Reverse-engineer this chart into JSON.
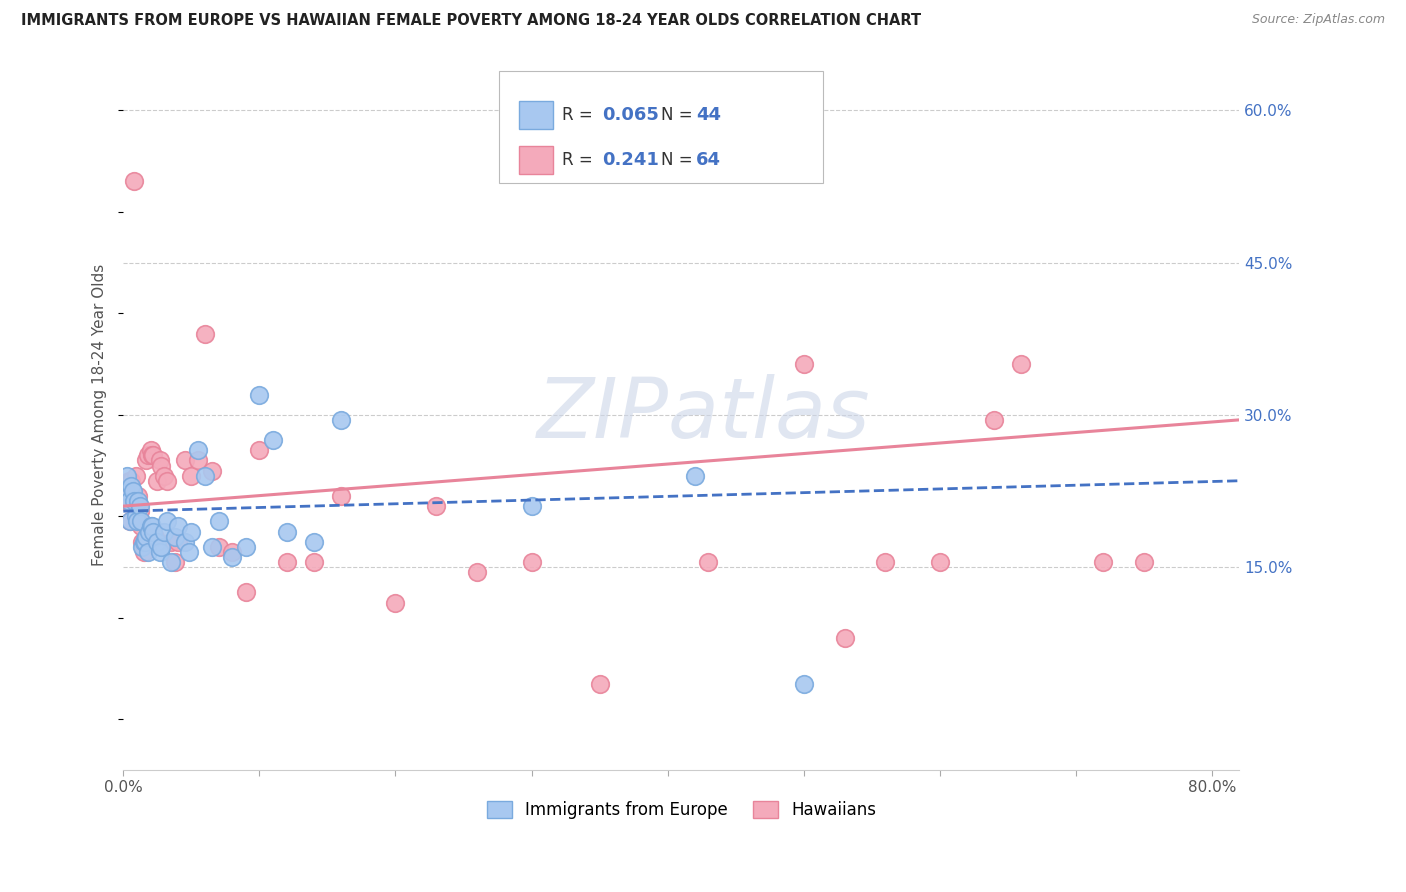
{
  "title": "IMMIGRANTS FROM EUROPE VS HAWAIIAN FEMALE POVERTY AMONG 18-24 YEAR OLDS CORRELATION CHART",
  "source": "Source: ZipAtlas.com",
  "ylabel": "Female Poverty Among 18-24 Year Olds",
  "xlim": [
    0.0,
    0.82
  ],
  "ylim": [
    -0.05,
    0.65
  ],
  "xticks": [
    0.0,
    0.1,
    0.2,
    0.3,
    0.4,
    0.5,
    0.6,
    0.7,
    0.8
  ],
  "xticklabels": [
    "0.0%",
    "",
    "",
    "",
    "",
    "",
    "",
    "",
    "80.0%"
  ],
  "yticks_right": [
    0.15,
    0.3,
    0.45,
    0.6
  ],
  "ytick_labels_right": [
    "15.0%",
    "30.0%",
    "45.0%",
    "60.0%"
  ],
  "color_blue": "#A8C8F0",
  "color_blue_edge": "#7AAADE",
  "color_pink": "#F4AABB",
  "color_pink_edge": "#E8849A",
  "color_blue_text": "#4472C4",
  "watermark_text": "ZIPatlas",
  "label1": "Immigrants from Europe",
  "label2": "Hawaiians",
  "blue_scatter_x": [
    0.002,
    0.003,
    0.004,
    0.005,
    0.006,
    0.007,
    0.008,
    0.009,
    0.01,
    0.011,
    0.012,
    0.013,
    0.014,
    0.015,
    0.016,
    0.017,
    0.018,
    0.019,
    0.02,
    0.021,
    0.022,
    0.025,
    0.027,
    0.028,
    0.03,
    0.032,
    0.035,
    0.038,
    0.04,
    0.045,
    0.048,
    0.05,
    0.055,
    0.06,
    0.065,
    0.07,
    0.08,
    0.09,
    0.1,
    0.11,
    0.12,
    0.14,
    0.16,
    0.3,
    0.42,
    0.5
  ],
  "blue_scatter_y": [
    0.225,
    0.24,
    0.215,
    0.195,
    0.23,
    0.225,
    0.215,
    0.2,
    0.195,
    0.215,
    0.21,
    0.195,
    0.17,
    0.175,
    0.175,
    0.18,
    0.165,
    0.185,
    0.19,
    0.19,
    0.185,
    0.175,
    0.165,
    0.17,
    0.185,
    0.195,
    0.155,
    0.18,
    0.19,
    0.175,
    0.165,
    0.185,
    0.265,
    0.24,
    0.17,
    0.195,
    0.16,
    0.17,
    0.32,
    0.275,
    0.185,
    0.175,
    0.295,
    0.21,
    0.24,
    0.035
  ],
  "pink_scatter_x": [
    0.002,
    0.003,
    0.004,
    0.005,
    0.006,
    0.007,
    0.008,
    0.009,
    0.01,
    0.011,
    0.012,
    0.013,
    0.014,
    0.015,
    0.016,
    0.017,
    0.018,
    0.019,
    0.02,
    0.021,
    0.022,
    0.023,
    0.025,
    0.027,
    0.028,
    0.03,
    0.032,
    0.035,
    0.038,
    0.04,
    0.045,
    0.05,
    0.055,
    0.06,
    0.065,
    0.07,
    0.08,
    0.09,
    0.1,
    0.12,
    0.14,
    0.16,
    0.2,
    0.23,
    0.26,
    0.3,
    0.35,
    0.43,
    0.5,
    0.53,
    0.56,
    0.6,
    0.64,
    0.66,
    0.72,
    0.75
  ],
  "pink_scatter_y": [
    0.215,
    0.225,
    0.235,
    0.195,
    0.235,
    0.22,
    0.53,
    0.24,
    0.21,
    0.22,
    0.205,
    0.19,
    0.175,
    0.165,
    0.175,
    0.255,
    0.26,
    0.18,
    0.265,
    0.26,
    0.26,
    0.18,
    0.235,
    0.255,
    0.25,
    0.24,
    0.235,
    0.175,
    0.155,
    0.175,
    0.255,
    0.24,
    0.255,
    0.38,
    0.245,
    0.17,
    0.165,
    0.125,
    0.265,
    0.155,
    0.155,
    0.22,
    0.115,
    0.21,
    0.145,
    0.155,
    0.035,
    0.155,
    0.35,
    0.08,
    0.155,
    0.155,
    0.295,
    0.35,
    0.155,
    0.155
  ],
  "blue_trend_x": [
    0.0,
    0.82
  ],
  "blue_trend_y": [
    0.205,
    0.235
  ],
  "pink_trend_x": [
    0.0,
    0.82
  ],
  "pink_trend_y": [
    0.21,
    0.295
  ]
}
